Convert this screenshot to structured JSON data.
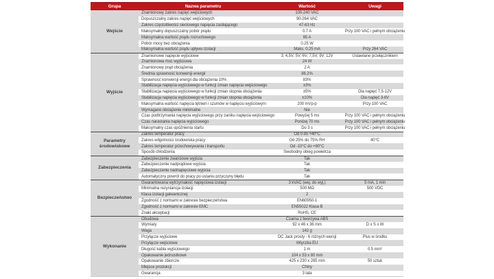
{
  "colors": {
    "page_bg": "#ffffff",
    "header_bg": "#c3161c",
    "header_top": "#8f1013",
    "header_text": "#ffffff",
    "stripe": "#d9d9d9",
    "group_bg": "#d7d7d7",
    "separator": "#464646",
    "text": "#3f3f3f"
  },
  "table": {
    "columns": [
      "Grupa",
      "Nazwa parametru",
      "Wartość",
      "Uwagi"
    ],
    "groups": [
      {
        "name": "Wejście",
        "rows": [
          {
            "param": "Znamionowy zakres napięć wejściowych",
            "value": "100-240 VAC",
            "note": ""
          },
          {
            "param": "Dopuszczalny zakres napięć wejściowych",
            "value": "90-264 VAC",
            "note": ""
          },
          {
            "param": "Zakres częstotliwości sieciowego napięcia zasilającego",
            "value": "47-63 Hz",
            "note": ""
          },
          {
            "param": "Maksymalny dopuszczalny pobór prądu",
            "value": "0.7 A",
            "note": "Przy 100 VAC i pełnym obciążeniu"
          },
          {
            "param": "Maksymalna wartość prądu rozruchowego",
            "value": "65 A",
            "note": ""
          },
          {
            "param": "Pobór mocy bez obciążenia",
            "value": "0.25 W",
            "note": ""
          },
          {
            "param": "Maksymalna wartość prądu upływu izolacji",
            "value": "Maks. 0.25 mA",
            "note": "Przy 264 VAC"
          }
        ]
      },
      {
        "name": "Wyjście",
        "rows": [
          {
            "param": "Znamionowe napięcie wyjściowe",
            "value": "3; 4,5V; 5V; 6V; 7,5V; 9V; 12V",
            "note": "Ustawiane przełącznikiem"
          },
          {
            "param": "Znamionowa moc wyjściowa",
            "value": "24 W",
            "note": ""
          },
          {
            "param": "Znamionowy prąd obciążenia",
            "value": "2 A",
            "note": ""
          },
          {
            "param": "Średnia sprawność konwersji energii",
            "value": "86.2%",
            "note": ""
          },
          {
            "param": "Sprawność konwersji energii dla obciążenia 10%",
            "value": "83%",
            "note": ""
          },
          {
            "param": "Stabilizacja napięcia wyjściowego w funkcji zmian napięcia wejściowego",
            "value": "±3%",
            "note": ""
          },
          {
            "param": "Stabilizacja napięcia wyjściowego w funkcji zmian stopnia obciążenia",
            "value": "±5%",
            "note": "Dla napięć 7,5-12V"
          },
          {
            "param": "Stabilizacja napięcia wyjściowego w funkcji zmian stopnia obciążenia",
            "value": "±10%",
            "note": "Dla napięć 3-6V"
          },
          {
            "param": "Maksymalna wartość napięcia tętnień i szumów w napięciu wyjściowym",
            "value": "200 mVp-p",
            "note": "Przy 100 VAC"
          },
          {
            "param": "Wymagane obciążenie minimalne",
            "value": "Nie",
            "note": ""
          },
          {
            "param": "Czas podtrzymania napięcia wyjściowego przy zaniku napięcia wejściowego",
            "value": "Powyżej 5 ms",
            "note": "Przy 100 VAC i pełnym obciążeniu"
          },
          {
            "param": "Czas narastania napięcia wyjściowego",
            "value": "Poniżej 70 ms",
            "note": "Przy 100 VAC i pełnym obciążeniu"
          },
          {
            "param": "Maksymalny czas opóźnienia startu",
            "value": "Do 3 s",
            "note": "Przy 100 VAC i pełnym obciążeniu"
          }
        ]
      },
      {
        "name": "Parametry środowiskowe",
        "rows": [
          {
            "param": "Zakres temperatur pracy",
            "value": "Od 0 do +40°C",
            "note": ""
          },
          {
            "param": "Zakres wilgotności środowiska pracy",
            "value": "Od 25% do 75% RH",
            "note": "40°C"
          },
          {
            "param": "Zakres temperatur przechowywania i transportu",
            "value": "Od -10°C do +80°C",
            "note": ""
          },
          {
            "param": "Sposób chłodzenia",
            "value": "Swobodny obieg powietrza",
            "note": ""
          }
        ]
      },
      {
        "name": "Zabezpieczenia",
        "rows": [
          {
            "param": "Zabezpieczenie zwarciowe wyjścia",
            "value": "Tak",
            "note": ""
          },
          {
            "param": "Zabezpieczenie nadprądowe wyjścia",
            "value": "Tak",
            "note": ""
          },
          {
            "param": "Zabezpieczenie nadnapięciowe wyjścia",
            "value": "Tak",
            "note": ""
          },
          {
            "param": "Automatyczny powrót do pracy po ustaniu przyczyny błędu",
            "value": "Tak",
            "note": ""
          }
        ]
      },
      {
        "name": "Bezpieczeństwo",
        "rows": [
          {
            "param": "Gwarantowana wytrzymałość napięciowa izolacji",
            "value": "3 kVAC (wej. do wyj.)",
            "note": "5 mA, 1 min"
          },
          {
            "param": "Minimalna rezystancja izolacji",
            "value": "500 MΩ",
            "note": "500 VDC"
          },
          {
            "param": "Klasa izolacji galwanicznej",
            "value": "2",
            "note": ""
          },
          {
            "param": "Zgodność z normami w zakresie bezpieczeństwa",
            "value": "EN60950-1",
            "note": ""
          },
          {
            "param": "Zgodność z normami w zakresie EMC",
            "value": "EN55022 Klasa B",
            "note": ""
          },
          {
            "param": "Znaki akceptacji",
            "value": "RoHS, CE",
            "note": ""
          }
        ]
      },
      {
        "name": "Wykonanie",
        "rows": [
          {
            "param": "Obudowa",
            "value": "Czarna z tworzywa ABS",
            "note": ""
          },
          {
            "param": "Wymiary",
            "value": "92 x 46 x 36 mm",
            "note": "D x S x W"
          },
          {
            "param": "Waga",
            "value": "142 g",
            "note": ""
          },
          {
            "param": "Przyłącze wyjściowe",
            "value": "DC Jack prosty - 6 różnych wersji",
            "note": "Plus w środku"
          },
          {
            "param": "Przyłącze wejściowe",
            "value": "Wtyczka EU",
            "note": ""
          },
          {
            "param": "Długość kabla wyjściowego",
            "value": "1 m",
            "note": "0.5 mm²"
          },
          {
            "param": "Opakowanie jednostkowe",
            "value": "104 x 53 x 80 mm",
            "note": ""
          },
          {
            "param": "Opakowanie zbiorcze",
            "value": "425 x 230 x 285 mm",
            "note": "50 sztuk"
          },
          {
            "param": "Miejsce produkcji",
            "value": "Chiny",
            "note": ""
          },
          {
            "param": "Gwarancja",
            "value": "3 lata",
            "note": ""
          }
        ]
      }
    ]
  }
}
